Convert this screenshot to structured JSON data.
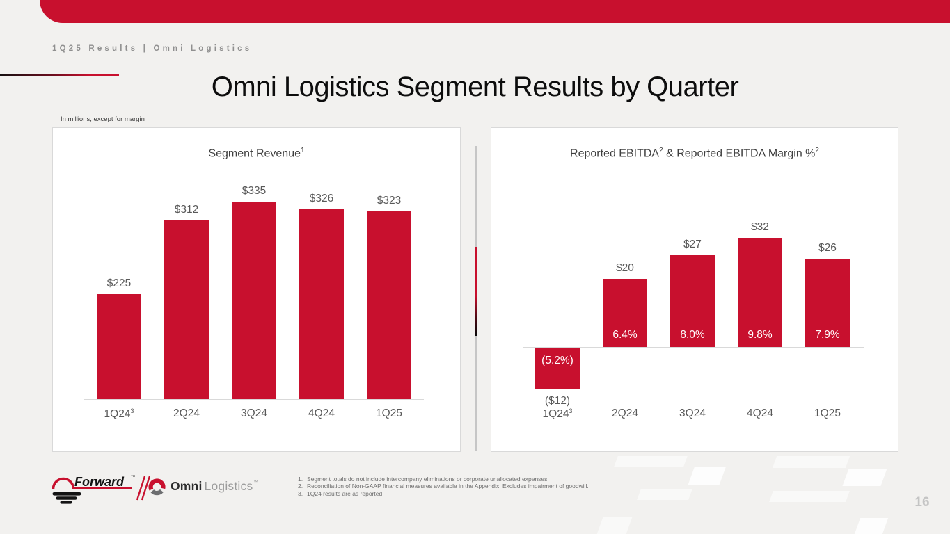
{
  "page": {
    "breadcrumb": "1Q25 Results | Omni Logistics",
    "title": "Omni Logistics Segment Results by Quarter",
    "units_note": "In millions, except for margin",
    "page_number": "16"
  },
  "colors": {
    "accent_red": "#C8102E",
    "background": "#F2F1EF",
    "bar_red": "#C8102E",
    "label_gray": "#595959"
  },
  "logos": {
    "forward": {
      "text": "Forward",
      "tm": "™"
    },
    "separator": "//",
    "omni": {
      "bold": "Omni",
      "light": "Logistics",
      "tm": "™"
    }
  },
  "footnotes": [
    {
      "n": "1.",
      "t": "Segment totals do not include intercompany eliminations or corporate unallocated expenses"
    },
    {
      "n": "2.",
      "t": "Reconciliation of Non-GAAP financial measures available in the Appendix. Excludes impairment of goodwill."
    },
    {
      "n": "3.",
      "t": "1Q24 results are as reported."
    }
  ],
  "chart_data": [
    {
      "type": "bar",
      "title_part1": "Segment Revenue",
      "title_sup1": "1",
      "title_part2": "",
      "title_sup2": "",
      "categories": [
        "1Q24",
        "2Q24",
        "3Q24",
        "4Q24",
        "1Q25"
      ],
      "category_sups": [
        "3",
        "",
        "",
        "",
        ""
      ],
      "values": [
        225,
        312,
        335,
        326,
        323
      ],
      "value_labels": [
        "$225",
        "$312",
        "$335",
        "$326",
        "$323"
      ],
      "ylim": [
        100,
        360
      ],
      "bar_color": "#C8102E",
      "grid": "off",
      "legend": "none"
    },
    {
      "type": "bar",
      "title_part1": "Reported EBITDA",
      "title_sup1": "2",
      "title_part2": " & Reported EBITDA Margin %",
      "title_sup2": "2",
      "categories": [
        "1Q24",
        "2Q24",
        "3Q24",
        "4Q24",
        "1Q25"
      ],
      "category_sups": [
        "3",
        "",
        "",
        "",
        ""
      ],
      "values": [
        -12,
        20,
        27,
        32,
        26
      ],
      "value_labels": [
        "($12)",
        "$20",
        "$27",
        "$32",
        "$26"
      ],
      "margin_values": [
        -5.2,
        6.4,
        8.0,
        9.8,
        7.9
      ],
      "margin_labels": [
        "(5.2%)",
        "6.4%",
        "8.0%",
        "9.8%",
        "7.9%"
      ],
      "ylim": [
        -20,
        40
      ],
      "bar_color": "#C8102E",
      "grid": "off",
      "legend": "none"
    }
  ]
}
